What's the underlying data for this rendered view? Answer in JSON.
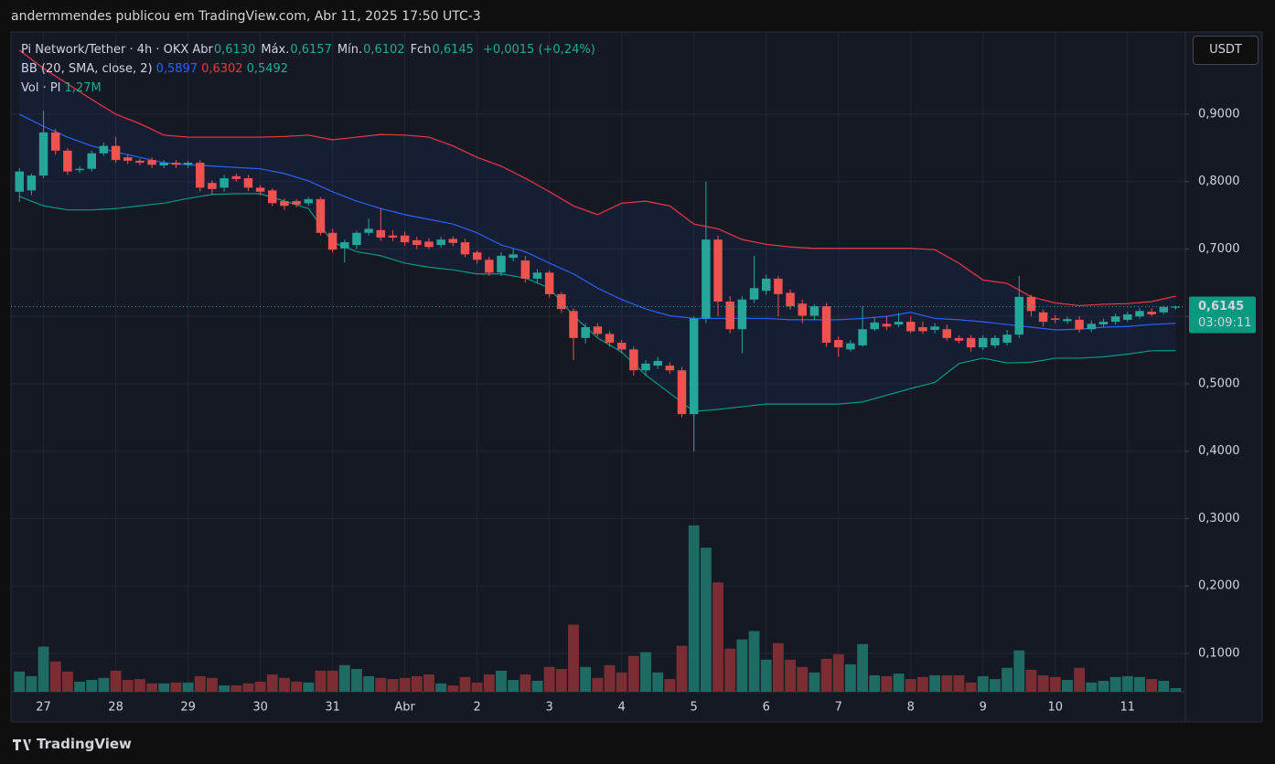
{
  "page": {
    "byline": "andermmendes publicou em TradingView.com, Abr 11, 2025 17:50 UTC-3",
    "brand": "TradingView",
    "currency": "USDT"
  },
  "chart_data": {
    "type": "candlestick",
    "legend_texts": {
      "symbol": "Pi Network/Tether · 4h · OKX",
      "items": [
        {
          "label": "Abr",
          "value": "0,6130"
        },
        {
          "label": "Máx.",
          "value": "0,6157"
        },
        {
          "label": "Mín.",
          "value": "0,6102"
        },
        {
          "label": "Fch",
          "value": "0,6145"
        }
      ],
      "change": "+0,0015 (+0,24%)",
      "bb_label": "BB (20, SMA, close, 2)",
      "bb_values": [
        "0,5897",
        "0,6302",
        "0,5492"
      ],
      "vol_label": "Vol · PI",
      "vol_value": "1,27M"
    },
    "last_price": {
      "value": 0.6145,
      "label": "0,6145",
      "countdown": "03:09:11"
    },
    "colors": {
      "up": "#26a69a",
      "down": "#ef5350",
      "vol_up": "#1d6b63",
      "vol_down": "#7c2d33",
      "bb_upper": "#f23645",
      "bb_middle": "#2962ff",
      "bb_lower": "#089981"
    },
    "xlim": [
      -0.7,
      96.8
    ],
    "ylim": [
      0.043,
      1.022
    ],
    "volume_lim": [
      0,
      60
    ],
    "grid": true,
    "xticks": [
      {
        "value": 2,
        "label": "27"
      },
      {
        "value": 8,
        "label": "28"
      },
      {
        "value": 14,
        "label": "29"
      },
      {
        "value": 20,
        "label": "30"
      },
      {
        "value": 26,
        "label": "31"
      },
      {
        "value": 32,
        "label": "Abr"
      },
      {
        "value": 38,
        "label": "2"
      },
      {
        "value": 44,
        "label": "3"
      },
      {
        "value": 50,
        "label": "4"
      },
      {
        "value": 56,
        "label": "5"
      },
      {
        "value": 62,
        "label": "6"
      },
      {
        "value": 68,
        "label": "7"
      },
      {
        "value": 74,
        "label": "8"
      },
      {
        "value": 80,
        "label": "9"
      },
      {
        "value": 86,
        "label": "10"
      },
      {
        "value": 92,
        "label": "11"
      }
    ],
    "yticks": [
      {
        "value": 0.1,
        "label": "0,1000"
      },
      {
        "value": 0.2,
        "label": "0,2000"
      },
      {
        "value": 0.3,
        "label": "0,3000"
      },
      {
        "value": 0.4,
        "label": "0,4000"
      },
      {
        "value": 0.5,
        "label": "0,5000"
      },
      {
        "value": 0.6,
        "label": "0,6000"
      },
      {
        "value": 0.7,
        "label": "0,7000"
      },
      {
        "value": 0.8,
        "label": "0,8000"
      },
      {
        "value": 0.9,
        "label": "0,9000"
      }
    ],
    "ohlc": [
      [
        0.785,
        0.82,
        0.77,
        0.815
      ],
      [
        0.787,
        0.812,
        0.78,
        0.809
      ],
      [
        0.809,
        0.905,
        0.805,
        0.873
      ],
      [
        0.873,
        0.878,
        0.84,
        0.846
      ],
      [
        0.846,
        0.85,
        0.81,
        0.815
      ],
      [
        0.817,
        0.823,
        0.813,
        0.819
      ],
      [
        0.819,
        0.846,
        0.815,
        0.842
      ],
      [
        0.842,
        0.858,
        0.838,
        0.853
      ],
      [
        0.853,
        0.866,
        0.828,
        0.832
      ],
      [
        0.836,
        0.84,
        0.826,
        0.831
      ],
      [
        0.831,
        0.834,
        0.824,
        0.828
      ],
      [
        0.832,
        0.836,
        0.82,
        0.825
      ],
      [
        0.824,
        0.832,
        0.82,
        0.828
      ],
      [
        0.828,
        0.832,
        0.82,
        0.825
      ],
      [
        0.825,
        0.831,
        0.82,
        0.828
      ],
      [
        0.828,
        0.832,
        0.785,
        0.791
      ],
      [
        0.798,
        0.802,
        0.78,
        0.789
      ],
      [
        0.791,
        0.81,
        0.785,
        0.805
      ],
      [
        0.808,
        0.812,
        0.8,
        0.804
      ],
      [
        0.805,
        0.81,
        0.786,
        0.791
      ],
      [
        0.791,
        0.795,
        0.78,
        0.785
      ],
      [
        0.787,
        0.79,
        0.764,
        0.768
      ],
      [
        0.771,
        0.775,
        0.758,
        0.764
      ],
      [
        0.771,
        0.774,
        0.762,
        0.766
      ],
      [
        0.768,
        0.777,
        0.764,
        0.774
      ],
      [
        0.774,
        0.777,
        0.72,
        0.724
      ],
      [
        0.724,
        0.73,
        0.695,
        0.699
      ],
      [
        0.701,
        0.714,
        0.68,
        0.71
      ],
      [
        0.706,
        0.727,
        0.7,
        0.724
      ],
      [
        0.724,
        0.745,
        0.72,
        0.73
      ],
      [
        0.728,
        0.76,
        0.712,
        0.717
      ],
      [
        0.72,
        0.728,
        0.712,
        0.717
      ],
      [
        0.72,
        0.726,
        0.705,
        0.71
      ],
      [
        0.713,
        0.718,
        0.7,
        0.706
      ],
      [
        0.711,
        0.716,
        0.7,
        0.703
      ],
      [
        0.706,
        0.718,
        0.702,
        0.714
      ],
      [
        0.715,
        0.719,
        0.704,
        0.709
      ],
      [
        0.71,
        0.715,
        0.688,
        0.692
      ],
      [
        0.695,
        0.698,
        0.678,
        0.684
      ],
      [
        0.684,
        0.688,
        0.66,
        0.665
      ],
      [
        0.665,
        0.695,
        0.66,
        0.69
      ],
      [
        0.687,
        0.7,
        0.682,
        0.692
      ],
      [
        0.683,
        0.69,
        0.65,
        0.656
      ],
      [
        0.656,
        0.67,
        0.65,
        0.665
      ],
      [
        0.665,
        0.668,
        0.628,
        0.633
      ],
      [
        0.633,
        0.636,
        0.605,
        0.611
      ],
      [
        0.608,
        0.612,
        0.535,
        0.568
      ],
      [
        0.568,
        0.59,
        0.56,
        0.584
      ],
      [
        0.585,
        0.59,
        0.57,
        0.574
      ],
      [
        0.574,
        0.578,
        0.555,
        0.561
      ],
      [
        0.561,
        0.565,
        0.545,
        0.551
      ],
      [
        0.551,
        0.555,
        0.512,
        0.52
      ],
      [
        0.52,
        0.535,
        0.512,
        0.53
      ],
      [
        0.527,
        0.54,
        0.522,
        0.534
      ],
      [
        0.527,
        0.532,
        0.515,
        0.52
      ],
      [
        0.52,
        0.525,
        0.45,
        0.455
      ],
      [
        0.455,
        0.6,
        0.4,
        0.597
      ],
      [
        0.597,
        0.8,
        0.59,
        0.714
      ],
      [
        0.714,
        0.72,
        0.6,
        0.622
      ],
      [
        0.622,
        0.63,
        0.575,
        0.581
      ],
      [
        0.581,
        0.63,
        0.545,
        0.625
      ],
      [
        0.625,
        0.69,
        0.62,
        0.642
      ],
      [
        0.638,
        0.662,
        0.632,
        0.656
      ],
      [
        0.656,
        0.66,
        0.6,
        0.633
      ],
      [
        0.635,
        0.64,
        0.61,
        0.615
      ],
      [
        0.619,
        0.625,
        0.59,
        0.601
      ],
      [
        0.601,
        0.618,
        0.595,
        0.615
      ],
      [
        0.615,
        0.62,
        0.555,
        0.561
      ],
      [
        0.565,
        0.57,
        0.54,
        0.554
      ],
      [
        0.551,
        0.565,
        0.548,
        0.56
      ],
      [
        0.557,
        0.615,
        0.555,
        0.581
      ],
      [
        0.581,
        0.598,
        0.578,
        0.591
      ],
      [
        0.589,
        0.6,
        0.58,
        0.585
      ],
      [
        0.588,
        0.605,
        0.584,
        0.592
      ],
      [
        0.592,
        0.6,
        0.575,
        0.578
      ],
      [
        0.584,
        0.592,
        0.574,
        0.578
      ],
      [
        0.58,
        0.59,
        0.575,
        0.585
      ],
      [
        0.581,
        0.588,
        0.564,
        0.568
      ],
      [
        0.568,
        0.572,
        0.56,
        0.564
      ],
      [
        0.568,
        0.572,
        0.548,
        0.554
      ],
      [
        0.554,
        0.572,
        0.55,
        0.568
      ],
      [
        0.557,
        0.572,
        0.553,
        0.568
      ],
      [
        0.561,
        0.58,
        0.557,
        0.573
      ],
      [
        0.573,
        0.66,
        0.568,
        0.629
      ],
      [
        0.629,
        0.632,
        0.6,
        0.608
      ],
      [
        0.606,
        0.61,
        0.585,
        0.592
      ],
      [
        0.597,
        0.602,
        0.59,
        0.595
      ],
      [
        0.593,
        0.6,
        0.589,
        0.596
      ],
      [
        0.595,
        0.6,
        0.576,
        0.581
      ],
      [
        0.581,
        0.594,
        0.577,
        0.589
      ],
      [
        0.588,
        0.597,
        0.584,
        0.592
      ],
      [
        0.592,
        0.604,
        0.588,
        0.6
      ],
      [
        0.595,
        0.607,
        0.592,
        0.603
      ],
      [
        0.6,
        0.612,
        0.597,
        0.608
      ],
      [
        0.607,
        0.612,
        0.6,
        0.603
      ],
      [
        0.606,
        0.616,
        0.603,
        0.614
      ],
      [
        0.613,
        0.6157,
        0.6102,
        0.6145
      ]
    ],
    "volume": [
      7.0,
      5.4,
      15.6,
      10.5,
      7.0,
      3.5,
      4.1,
      4.8,
      7.3,
      4.1,
      4.4,
      2.9,
      2.9,
      3.2,
      3.2,
      5.4,
      4.8,
      2.2,
      2.2,
      2.9,
      3.5,
      6.0,
      4.8,
      3.5,
      3.2,
      7.3,
      7.3,
      9.2,
      7.9,
      5.4,
      4.8,
      4.4,
      4.8,
      5.4,
      6.0,
      2.9,
      2.2,
      5.1,
      3.2,
      6.0,
      7.3,
      4.1,
      6.0,
      3.8,
      8.6,
      7.9,
      23.2,
      8.6,
      4.8,
      9.2,
      6.7,
      12.4,
      13.7,
      6.7,
      4.4,
      15.9,
      57.5,
      49.8,
      37.8,
      14.9,
      18.1,
      21.0,
      11.1,
      16.8,
      11.1,
      8.6,
      6.7,
      11.4,
      13.0,
      9.5,
      16.5,
      5.7,
      5.4,
      6.3,
      4.4,
      5.1,
      5.7,
      5.7,
      5.7,
      3.2,
      5.4,
      4.4,
      8.3,
      14.3,
      7.6,
      5.7,
      5.1,
      4.1,
      8.3,
      3.2,
      3.8,
      5.1,
      5.4,
      5.1,
      4.4,
      3.8,
      1.27
    ],
    "bb": {
      "x": [
        0,
        2,
        4,
        6,
        8,
        10,
        12,
        14,
        16,
        18,
        20,
        22,
        24,
        26,
        28,
        30,
        32,
        34,
        36,
        38,
        40,
        42,
        44,
        46,
        48,
        50,
        52,
        54,
        56,
        58,
        60,
        62,
        64,
        66,
        68,
        70,
        72,
        74,
        76,
        78,
        80,
        82,
        84,
        86,
        88,
        90,
        92,
        94,
        96
      ],
      "upper": [
        0.995,
        0.968,
        0.945,
        0.922,
        0.9,
        0.886,
        0.869,
        0.866,
        0.866,
        0.866,
        0.866,
        0.867,
        0.869,
        0.862,
        0.866,
        0.87,
        0.869,
        0.866,
        0.853,
        0.836,
        0.823,
        0.805,
        0.785,
        0.764,
        0.751,
        0.768,
        0.771,
        0.764,
        0.737,
        0.73,
        0.714,
        0.707,
        0.703,
        0.701,
        0.701,
        0.701,
        0.701,
        0.701,
        0.699,
        0.679,
        0.654,
        0.649,
        0.629,
        0.62,
        0.616,
        0.618,
        0.619,
        0.622,
        0.6302
      ],
      "middle": [
        0.9,
        0.882,
        0.866,
        0.853,
        0.844,
        0.836,
        0.828,
        0.825,
        0.823,
        0.821,
        0.819,
        0.812,
        0.801,
        0.785,
        0.771,
        0.76,
        0.751,
        0.744,
        0.737,
        0.724,
        0.706,
        0.696,
        0.679,
        0.663,
        0.642,
        0.625,
        0.611,
        0.601,
        0.597,
        0.597,
        0.597,
        0.597,
        0.595,
        0.595,
        0.595,
        0.597,
        0.6,
        0.606,
        0.597,
        0.595,
        0.592,
        0.588,
        0.584,
        0.58,
        0.581,
        0.584,
        0.585,
        0.588,
        0.5897
      ],
      "lower": [
        0.778,
        0.764,
        0.758,
        0.758,
        0.76,
        0.764,
        0.768,
        0.775,
        0.781,
        0.782,
        0.782,
        0.771,
        0.76,
        0.71,
        0.696,
        0.69,
        0.679,
        0.673,
        0.669,
        0.663,
        0.663,
        0.657,
        0.642,
        0.601,
        0.568,
        0.547,
        0.513,
        0.486,
        0.459,
        0.462,
        0.466,
        0.47,
        0.47,
        0.47,
        0.47,
        0.473,
        0.483,
        0.493,
        0.502,
        0.53,
        0.538,
        0.531,
        0.532,
        0.538,
        0.538,
        0.54,
        0.544,
        0.549,
        0.5492
      ]
    }
  }
}
